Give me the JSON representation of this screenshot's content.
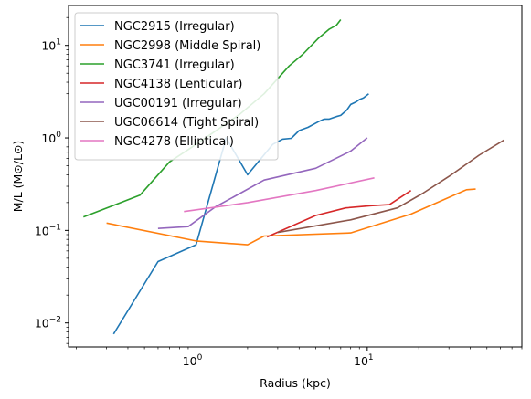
{
  "chart_data": {
    "type": "line",
    "title": "",
    "xlabel": "Radius (kpc)",
    "ylabel": "M/L (M⊙/L⊙)",
    "xscale": "log",
    "yscale": "log",
    "xlim": [
      0.18,
      80
    ],
    "ylim": [
      0.0055,
      27
    ],
    "x_ticks": [
      {
        "value": 1,
        "base": "10",
        "exp": "0"
      },
      {
        "value": 10,
        "base": "10",
        "exp": "1"
      }
    ],
    "y_ticks": [
      {
        "value": 0.01,
        "base": "10",
        "exp": "−2"
      },
      {
        "value": 0.1,
        "base": "10",
        "exp": "−1"
      },
      {
        "value": 1,
        "base": "10",
        "exp": "0"
      },
      {
        "value": 10,
        "base": "10",
        "exp": "1"
      }
    ],
    "grid": false,
    "legend_position": "top-left",
    "series": [
      {
        "name": "NGC2915 (Irregular)",
        "color": "#1f77b4",
        "points": [
          [
            0.33,
            0.0076
          ],
          [
            0.6,
            0.046
          ],
          [
            1.0,
            0.07
          ],
          [
            1.5,
            1.0
          ],
          [
            2.0,
            0.4
          ],
          [
            2.4,
            0.6
          ],
          [
            2.8,
            0.85
          ],
          [
            3.2,
            0.97
          ],
          [
            3.6,
            0.99
          ],
          [
            4.0,
            1.2
          ],
          [
            4.5,
            1.3
          ],
          [
            5.2,
            1.5
          ],
          [
            5.6,
            1.6
          ],
          [
            6.0,
            1.6
          ],
          [
            6.6,
            1.7
          ],
          [
            7.0,
            1.75
          ],
          [
            7.6,
            2.0
          ],
          [
            8.0,
            2.3
          ],
          [
            8.6,
            2.45
          ],
          [
            9.0,
            2.6
          ],
          [
            9.5,
            2.7
          ],
          [
            10.2,
            3.0
          ]
        ]
      },
      {
        "name": "NGC2998 (Middle Spiral)",
        "color": "#ff7f0e",
        "points": [
          [
            0.3,
            0.12
          ],
          [
            1.0,
            0.077
          ],
          [
            2.0,
            0.07
          ],
          [
            2.5,
            0.087
          ],
          [
            8.0,
            0.094
          ],
          [
            18.0,
            0.15
          ],
          [
            38.0,
            0.275
          ],
          [
            43.0,
            0.28
          ]
        ]
      },
      {
        "name": "NGC3741 (Irregular)",
        "color": "#2ca02c",
        "points": [
          [
            0.22,
            0.14
          ],
          [
            0.47,
            0.24
          ],
          [
            0.7,
            0.55
          ],
          [
            1.0,
            0.85
          ],
          [
            1.8,
            1.8
          ],
          [
            2.5,
            3.0
          ],
          [
            3.5,
            6.0
          ],
          [
            4.2,
            8.0
          ],
          [
            5.2,
            12.0
          ],
          [
            6.0,
            15.0
          ],
          [
            6.6,
            16.5
          ],
          [
            7.0,
            19.0
          ]
        ]
      },
      {
        "name": "NGC4138 (Lenticular)",
        "color": "#d62728",
        "points": [
          [
            2.6,
            0.085
          ],
          [
            5.0,
            0.145
          ],
          [
            7.5,
            0.175
          ],
          [
            10.5,
            0.185
          ],
          [
            13.5,
            0.19
          ],
          [
            18.0,
            0.27
          ]
        ]
      },
      {
        "name": "UGC00191 (Irregular)",
        "color": "#9467bd",
        "points": [
          [
            0.6,
            0.105
          ],
          [
            0.9,
            0.11
          ],
          [
            1.3,
            0.18
          ],
          [
            1.8,
            0.25
          ],
          [
            2.5,
            0.35
          ],
          [
            5.0,
            0.47
          ],
          [
            8.0,
            0.72
          ],
          [
            10.0,
            1.0
          ]
        ]
      },
      {
        "name": "UGC06614 (Tight Spiral)",
        "color": "#8c564b",
        "points": [
          [
            3.0,
            0.095
          ],
          [
            8.0,
            0.13
          ],
          [
            15.0,
            0.175
          ],
          [
            21.0,
            0.25
          ],
          [
            31.0,
            0.4
          ],
          [
            45.0,
            0.65
          ],
          [
            63.0,
            0.95
          ]
        ]
      },
      {
        "name": "NGC4278 (Elliptical)",
        "color": "#e377c2",
        "points": [
          [
            0.85,
            0.16
          ],
          [
            2.0,
            0.2
          ],
          [
            5.0,
            0.27
          ],
          [
            11.0,
            0.37
          ]
        ]
      }
    ]
  }
}
